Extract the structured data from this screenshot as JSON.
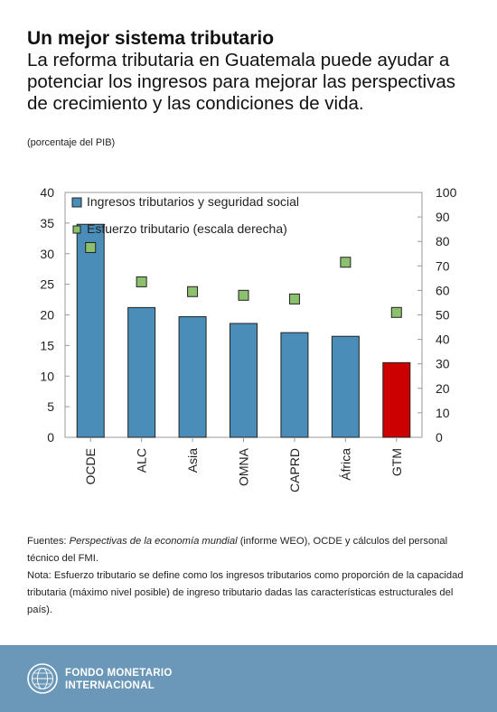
{
  "header": {
    "title": "Un mejor sistema tributario",
    "subtitle": "La reforma tributaria en Guatemala puede ayudar a potenciar los ingresos para mejorar las perspectivas de crecimiento y las condiciones de vida.",
    "unit": "(porcentaje del PIB)"
  },
  "chart_data": {
    "type": "bar",
    "categories": [
      "OCDE",
      "ALC",
      "Asia",
      "OMNA",
      "CAPRD",
      "África",
      "GTM"
    ],
    "series": [
      {
        "name": "Ingresos tributarios y seguridad social",
        "type": "bar",
        "axis": "left",
        "values": [
          34.8,
          21.2,
          19.7,
          18.6,
          17.1,
          16.5,
          12.2
        ]
      },
      {
        "name": "Esfuerzo tributario (escala derecha)",
        "type": "scatter",
        "axis": "right",
        "values": [
          77.5,
          63.5,
          59.5,
          58.0,
          56.5,
          71.5,
          51.0
        ]
      }
    ],
    "ylim": [
      0,
      40
    ],
    "yticks": [
      "0",
      "5",
      "10",
      "15",
      "20",
      "25",
      "30",
      "35",
      "40"
    ],
    "y2lim": [
      0,
      100
    ],
    "y2ticks": [
      "0",
      "10",
      "20",
      "30",
      "40",
      "50",
      "60",
      "70",
      "80",
      "90",
      "100"
    ],
    "legend_position": "top",
    "grid": false,
    "colors": {
      "bar": "#4a8db8",
      "bar_highlight": "#cc0000",
      "marker": "#8cbf6e",
      "axis": "#999999"
    }
  },
  "notes": {
    "sources_prefix": "Fuentes: ",
    "sources_italic": "Perspectivas de la economía mundial",
    "sources_rest": " (informe WEO), OCDE y cálculos del personal técnico del FMI.",
    "note": "Nota: Esfuerzo tributario se define como los ingresos tributarios como proporción de la capacidad tributaria (máximo nivel posible) de ingreso tributario dadas las características estructurales del país)."
  },
  "footer": {
    "brand_line1": "FONDO MONETARIO",
    "brand_line2": "INTERNACIONAL",
    "logo_icon": "imf-seal-icon",
    "background": "#6b98b9"
  }
}
